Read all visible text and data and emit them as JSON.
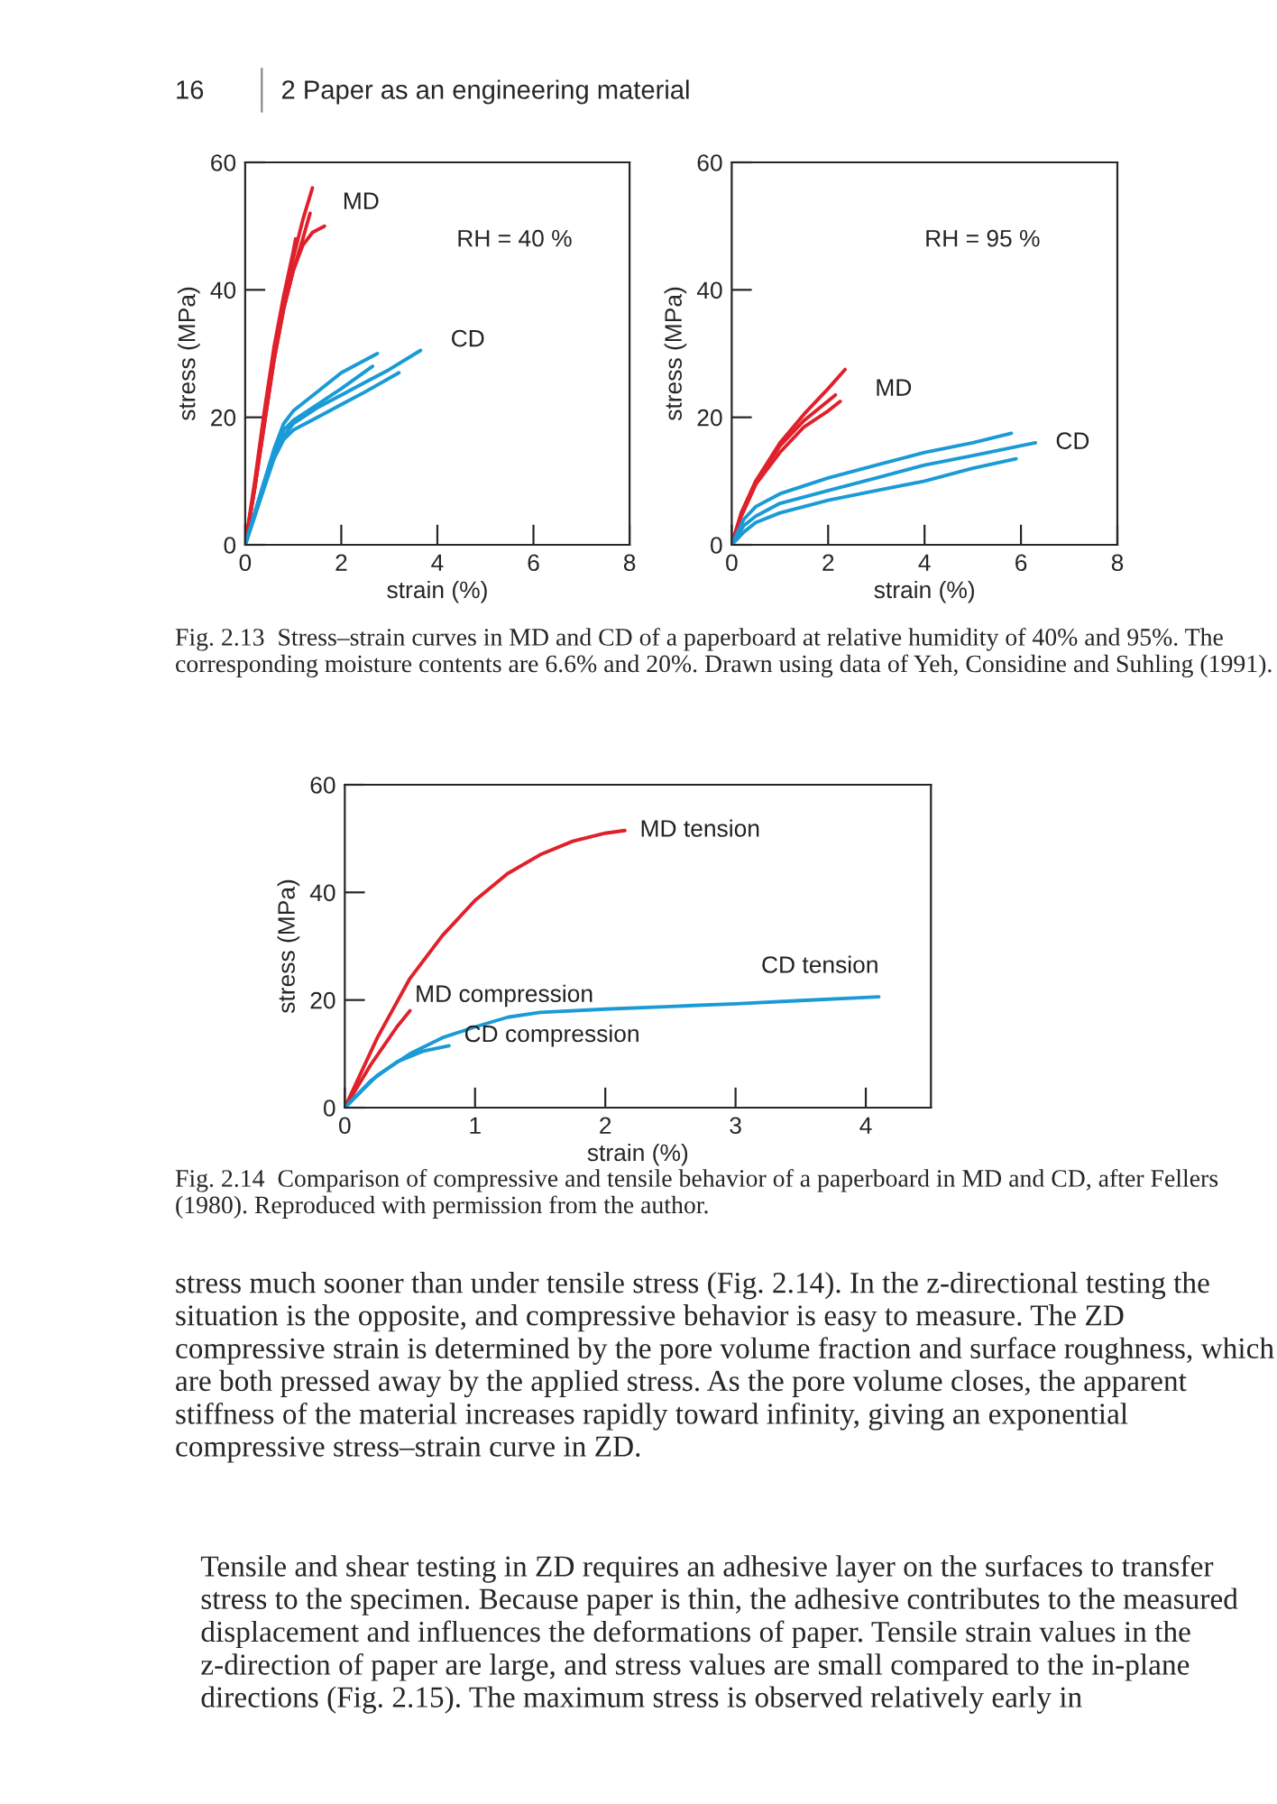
{
  "chart_data": [
    {
      "type": "line",
      "xlabel": "strain (%)",
      "ylabel": "stress (MPa)",
      "xlim": [
        0,
        8
      ],
      "ylim": [
        0,
        60
      ],
      "xticks": [
        0,
        2,
        4,
        6,
        8
      ],
      "yticks": [
        0,
        20,
        40,
        60
      ],
      "grid": false,
      "legend": false,
      "annotations": [
        "16",
        "2 Paper as an engineering material",
        "RH = 40 %",
        "Fig. 2.13  Stress–strain curves in MD and CD of a paperboard at relative humidity of 40% and 95%. The corresponding moisture contents are 6.6% and 20%. Drawn using data of Yeh, Considine and Suhling (1991)."
      ],
      "series": [
        {
          "name": "MD",
          "color": "#e0202a",
          "x": [
            0,
            0.2,
            0.4,
            0.6,
            0.8,
            1.0,
            1.2,
            1.4
          ],
          "values": [
            0,
            9,
            20,
            30,
            38,
            45,
            51,
            56
          ]
        },
        {
          "color": "#e0202a",
          "x": [
            0,
            0.2,
            0.4,
            0.6,
            0.8,
            1.0,
            1.05
          ],
          "values": [
            0,
            10,
            21,
            31,
            39,
            46,
            48
          ]
        },
        {
          "color": "#e0202a",
          "x": [
            0,
            0.2,
            0.4,
            0.6,
            0.8,
            1.0,
            1.2,
            1.35
          ],
          "values": [
            0,
            9,
            19,
            29,
            37,
            43,
            48,
            52
          ]
        },
        {
          "color": "#e0202a",
          "x": [
            0,
            0.2,
            0.4,
            0.6,
            0.8,
            1.0,
            1.2,
            1.4,
            1.65
          ],
          "values": [
            0,
            9,
            19,
            29,
            37,
            43,
            47,
            49,
            50
          ]
        },
        {
          "name": "CD",
          "color": "#1a9ad6",
          "x": [
            0,
            0.2,
            0.4,
            0.6,
            0.8,
            1.0,
            1.5,
            2.0,
            2.5,
            3.0,
            3.65
          ],
          "values": [
            0,
            4.5,
            9.5,
            14,
            17,
            19,
            21.5,
            23.5,
            25.5,
            27.5,
            30.5
          ]
        },
        {
          "color": "#1a9ad6",
          "x": [
            0,
            0.2,
            0.4,
            0.6,
            0.8,
            1.0,
            1.5,
            2.0,
            2.75
          ],
          "values": [
            0,
            5,
            10,
            15,
            19,
            21,
            24,
            27,
            30
          ]
        },
        {
          "color": "#1a9ad6",
          "x": [
            0,
            0.2,
            0.4,
            0.6,
            0.8,
            1.0,
            1.5,
            2.0,
            2.65
          ],
          "values": [
            0,
            5,
            10,
            14.5,
            18,
            19.5,
            22,
            24.5,
            28
          ]
        },
        {
          "color": "#1a9ad6",
          "x": [
            0,
            0.2,
            0.4,
            0.6,
            0.8,
            1.0,
            1.5,
            2.0,
            2.5,
            3.2
          ],
          "values": [
            0,
            4.5,
            9,
            13.5,
            16.5,
            18,
            20,
            22,
            24,
            27
          ]
        }
      ]
    },
    {
      "type": "line",
      "xlabel": "strain (%)",
      "ylabel": "stress (MPa)",
      "xlim": [
        0,
        8
      ],
      "ylim": [
        0,
        60
      ],
      "xticks": [
        0,
        2,
        4,
        6,
        8
      ],
      "yticks": [
        0,
        20,
        40,
        60
      ],
      "grid": false,
      "legend": false,
      "annotations": [
        "RH = 95 %"
      ],
      "series": [
        {
          "name": "MD",
          "color": "#e0202a",
          "x": [
            0,
            0.2,
            0.5,
            1.0,
            1.5,
            2.0,
            2.35
          ],
          "values": [
            0,
            5,
            10,
            16,
            20.5,
            24.5,
            27.5
          ]
        },
        {
          "color": "#e0202a",
          "x": [
            0,
            0.2,
            0.5,
            1.0,
            1.5,
            2.15
          ],
          "values": [
            0,
            5,
            10,
            15.5,
            19.5,
            23.5
          ]
        },
        {
          "color": "#e0202a",
          "x": [
            0,
            0.2,
            0.5,
            1.0,
            1.5,
            2.0,
            2.25
          ],
          "values": [
            0,
            4.5,
            9.5,
            14.5,
            18.5,
            21,
            22.5
          ]
        },
        {
          "name": "CD",
          "color": "#1a9ad6",
          "x": [
            0,
            0.25,
            0.5,
            1,
            2,
            3,
            4,
            5,
            6.3
          ],
          "values": [
            0,
            3,
            4.5,
            6.5,
            8.5,
            10.5,
            12.5,
            14,
            16
          ]
        },
        {
          "color": "#1a9ad6",
          "x": [
            0,
            0.25,
            0.5,
            1,
            2,
            3,
            4,
            5,
            5.8
          ],
          "values": [
            0,
            4,
            6,
            8,
            10.5,
            12.5,
            14.5,
            16,
            17.5
          ]
        },
        {
          "color": "#1a9ad6",
          "x": [
            0,
            0.25,
            0.5,
            1,
            2,
            3,
            4,
            5,
            5.9
          ],
          "values": [
            0,
            2,
            3.5,
            5,
            7,
            8.5,
            10,
            12,
            13.5
          ]
        }
      ]
    },
    {
      "type": "line",
      "xlabel": "strain (%)",
      "ylabel": "stress (MPa)",
      "xlim": [
        0,
        4.5
      ],
      "ylim": [
        0,
        60
      ],
      "xticks": [
        0,
        1,
        2,
        3,
        4
      ],
      "yticks": [
        0,
        20,
        40,
        60
      ],
      "grid": false,
      "legend": false,
      "annotations": [
        "Fig. 2.14  Comparison of compressive and tensile behavior of a paperboard in MD and CD, after Fellers (1980). Reproduced with permission from the author.",
        "stress much sooner than under tensile stress (Fig. 2.14). In the z-directional testing the situation is the opposite, and compressive behavior is easy to measure. The ZD compressive strain is determined by the pore volume fraction and surface roughness, which are both pressed away by the applied stress. As the pore volume closes, the apparent stiffness of the material increases rapidly toward infinity, giving an exponential compressive stress–strain curve in ZD.",
        "Tensile and shear testing in ZD requires an adhesive layer on the surfaces to transfer stress to the specimen. Because paper is thin, the adhesive contributes to the measured displacement and influences the deformations of paper. Tensile strain values in the z-direction of paper are large, and stress values are small compared to the in-plane directions (Fig. 2.15). The maximum stress is observed relatively early in"
      ],
      "series": [
        {
          "name": "MD tension",
          "color": "#e0202a",
          "x": [
            0,
            0.25,
            0.5,
            0.75,
            1.0,
            1.25,
            1.5,
            1.75,
            2.0,
            2.15
          ],
          "values": [
            0,
            13,
            24,
            32,
            38.5,
            43.5,
            47,
            49.5,
            51,
            51.5
          ]
        },
        {
          "name": "MD compression",
          "color": "#e0202a",
          "x": [
            0,
            0.1,
            0.2,
            0.3,
            0.4,
            0.5
          ],
          "values": [
            0,
            4,
            8,
            11.5,
            15,
            18
          ]
        },
        {
          "name": "CD tension",
          "color": "#1a9ad6",
          "x": [
            0,
            0.25,
            0.5,
            0.75,
            1.0,
            1.25,
            1.5,
            2,
            2.5,
            3,
            3.5,
            4.1
          ],
          "values": [
            0,
            6,
            10,
            13,
            15,
            16.8,
            17.7,
            18.3,
            18.8,
            19.3,
            19.9,
            20.6
          ]
        },
        {
          "name": "CD compression",
          "color": "#1a9ad6",
          "x": [
            0,
            0.2,
            0.4,
            0.6,
            0.8
          ],
          "values": [
            0,
            5,
            8.5,
            10.5,
            11.5
          ]
        }
      ]
    }
  ]
}
